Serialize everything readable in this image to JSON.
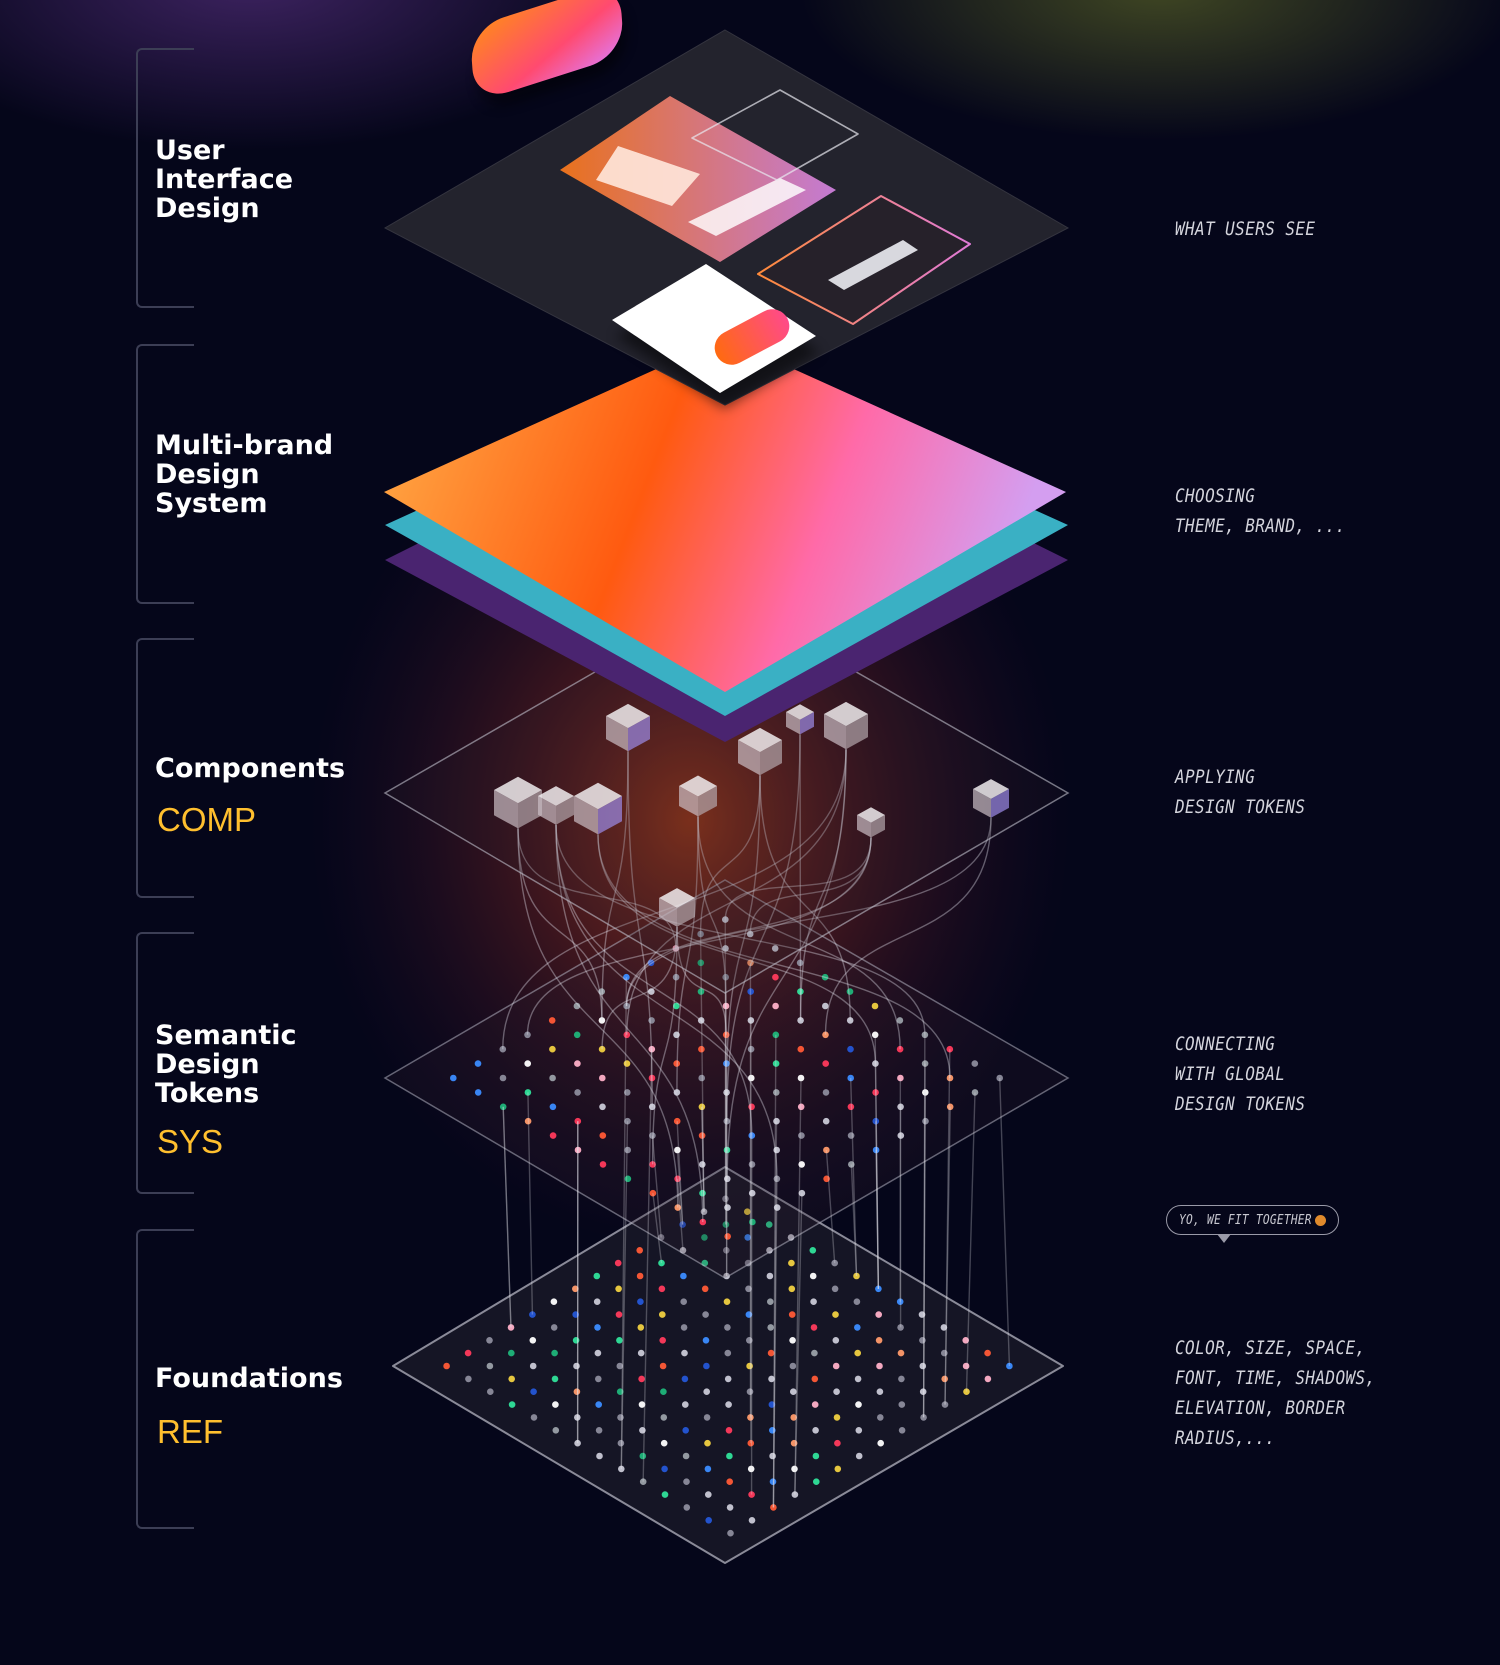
{
  "layers": [
    {
      "id": "ui",
      "title": "User\nInterface\nDesign",
      "code": "",
      "note": "WHAT USERS SEE"
    },
    {
      "id": "brand",
      "title": "Multi-brand\nDesign\nSystem",
      "code": "",
      "note": "CHOOSING\nTHEME, BRAND, ..."
    },
    {
      "id": "components",
      "title": "Components",
      "code": "COMP",
      "note": "APPLYING\nDESIGN TOKENS"
    },
    {
      "id": "semantic",
      "title": "Semantic\nDesign\nTokens",
      "code": "SYS",
      "note": "CONNECTING\nWITH GLOBAL\nDESIGN TOKENS"
    },
    {
      "id": "foundations",
      "title": "Foundations",
      "code": "REF",
      "note": "COLOR, SIZE, SPACE,\nFONT, TIME, SHADOWS,\nELEVATION, BORDER RADIUS,..."
    }
  ],
  "bubble": {
    "text": "YO, WE FIT TOGETHER",
    "icon": "smiley-face-icon"
  },
  "colors": {
    "background": "#05061a",
    "code_label": "#ffbf2e",
    "gradient_orange": "#ff6a00",
    "gradient_pink": "#f07bd2",
    "teal": "#3fb4c8",
    "purple": "#5a2d7a",
    "token_palette": [
      "#ffffff",
      "#c9c9d6",
      "#8c8c9c",
      "#2fe29a",
      "#1fb57a",
      "#3b8cff",
      "#2456d6",
      "#ff5a36",
      "#ff3a5c",
      "#ff9a6a",
      "#ffb0c8",
      "#f0d040",
      "#9aa0a8"
    ]
  }
}
